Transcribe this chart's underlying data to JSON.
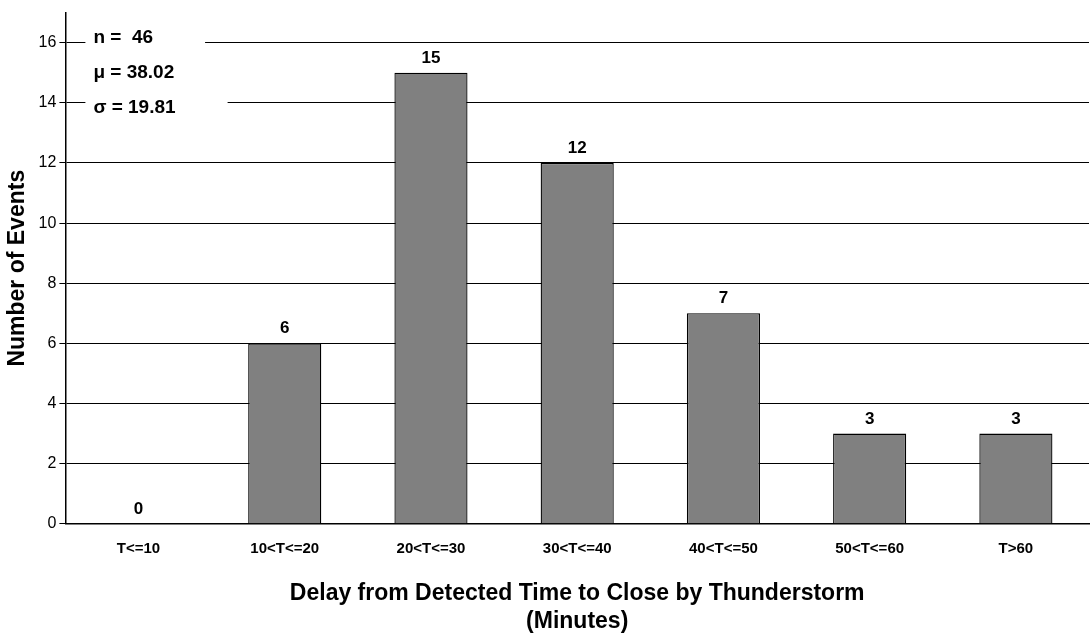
{
  "chart_data": {
    "type": "bar",
    "xlabel": "Delay from Detected Time to Close by Thunderstorm\n(Minutes)",
    "ylabel": "Number of Events",
    "categories": [
      "T<=10",
      "10<T<=20",
      "20<T<=30",
      "30<T<=40",
      "40<T<=50",
      "50<T<=60",
      "T>60"
    ],
    "values": [
      0,
      6,
      15,
      12,
      7,
      3,
      3
    ],
    "color": "#808080",
    "ylim": [
      0,
      17
    ],
    "yticks": [
      0,
      2,
      4,
      6,
      8,
      10,
      12,
      14,
      16
    ],
    "grid": "y",
    "data_labels": true,
    "legend": false,
    "annotations": [
      "n =  46",
      "μ = 38.02",
      "σ = 19.81"
    ]
  }
}
